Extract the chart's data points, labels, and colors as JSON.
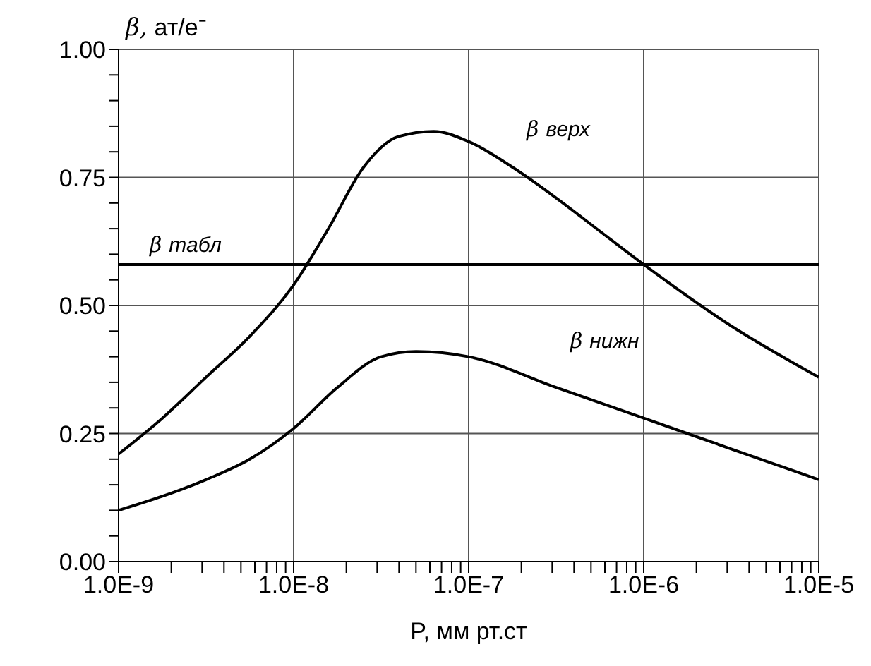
{
  "chart_data": {
    "type": "line",
    "xlabel": "P, мм рт.ст",
    "ylabel": "β, ат/e⁻",
    "log": "x",
    "xlim": [
      1e-09,
      1e-05
    ],
    "xticks": [
      {
        "value": 1e-09,
        "label": "1.0E-9"
      },
      {
        "value": 2e-09,
        "label": null
      },
      {
        "value": 3e-09,
        "label": null
      },
      {
        "value": 4e-09,
        "label": null
      },
      {
        "value": 5e-09,
        "label": null
      },
      {
        "value": 6e-09,
        "label": null
      },
      {
        "value": 7e-09,
        "label": null
      },
      {
        "value": 8e-09,
        "label": null
      },
      {
        "value": 9e-09,
        "label": null
      },
      {
        "value": 1e-08,
        "label": "1.0E-8"
      },
      {
        "value": 2e-08,
        "label": null
      },
      {
        "value": 3e-08,
        "label": null
      },
      {
        "value": 4e-08,
        "label": null
      },
      {
        "value": 5e-08,
        "label": null
      },
      {
        "value": 6e-08,
        "label": null
      },
      {
        "value": 7e-08,
        "label": null
      },
      {
        "value": 8e-08,
        "label": null
      },
      {
        "value": 9e-08,
        "label": null
      },
      {
        "value": 1e-07,
        "label": "1.0E-7"
      },
      {
        "value": 2e-07,
        "label": null
      },
      {
        "value": 3e-07,
        "label": null
      },
      {
        "value": 4e-07,
        "label": null
      },
      {
        "value": 5e-07,
        "label": null
      },
      {
        "value": 6e-07,
        "label": null
      },
      {
        "value": 7e-07,
        "label": null
      },
      {
        "value": 8e-07,
        "label": null
      },
      {
        "value": 9e-07,
        "label": null
      },
      {
        "value": 1e-06,
        "label": "1.0E-6"
      },
      {
        "value": 2e-06,
        "label": null
      },
      {
        "value": 3e-06,
        "label": null
      },
      {
        "value": 4e-06,
        "label": null
      },
      {
        "value": 5e-06,
        "label": null
      },
      {
        "value": 6e-06,
        "label": null
      },
      {
        "value": 7e-06,
        "label": null
      },
      {
        "value": 8e-06,
        "label": null
      },
      {
        "value": 9e-06,
        "label": null
      },
      {
        "value": 1e-05,
        "label": "1.0E-5"
      }
    ],
    "ylim": [
      0,
      1
    ],
    "yticks": [
      {
        "value": 0,
        "label": "0.00"
      },
      {
        "value": 0.05,
        "label": null
      },
      {
        "value": 0.1,
        "label": null
      },
      {
        "value": 0.15,
        "label": null
      },
      {
        "value": 0.2,
        "label": null
      },
      {
        "value": 0.25,
        "label": "0.25"
      },
      {
        "value": 0.3,
        "label": null
      },
      {
        "value": 0.35,
        "label": null
      },
      {
        "value": 0.4,
        "label": null
      },
      {
        "value": 0.45,
        "label": null
      },
      {
        "value": 0.5,
        "label": "0.50"
      },
      {
        "value": 0.55,
        "label": null
      },
      {
        "value": 0.6,
        "label": null
      },
      {
        "value": 0.65,
        "label": null
      },
      {
        "value": 0.7,
        "label": null
      },
      {
        "value": 0.75,
        "label": "0.75"
      },
      {
        "value": 0.8,
        "label": null
      },
      {
        "value": 0.85,
        "label": null
      },
      {
        "value": 0.9,
        "label": null
      },
      {
        "value": 0.95,
        "label": null
      },
      {
        "value": 1,
        "label": "1.00"
      }
    ],
    "grid": true,
    "legend": false,
    "marker": "none",
    "line_style": "solid",
    "series": [
      {
        "name": "β верх",
        "color": "#000000",
        "x": [
          1e-09,
          1.78e-09,
          3.16e-09,
          5.62e-09,
          1e-08,
          1.58e-08,
          2.51e-08,
          3.98e-08,
          6.31e-08,
          1e-07,
          1.78e-07,
          3.16e-07,
          5.62e-07,
          1e-06,
          3.16e-06,
          1e-05
        ],
        "values": [
          0.21,
          0.28,
          0.36,
          0.44,
          0.54,
          0.65,
          0.77,
          0.83,
          0.84,
          0.82,
          0.77,
          0.71,
          0.645,
          0.58,
          0.46,
          0.36
        ]
      },
      {
        "name": "β нижн",
        "color": "#000000",
        "x": [
          1e-09,
          3.16e-09,
          5.62e-09,
          1e-08,
          1.78e-08,
          3.16e-08,
          5.01e-08,
          1e-07,
          3.16e-07,
          1e-06,
          3.16e-06,
          1e-05
        ],
        "values": [
          0.1,
          0.16,
          0.2,
          0.26,
          0.34,
          0.4,
          0.41,
          0.4,
          0.34,
          0.28,
          0.22,
          0.16
        ]
      }
    ],
    "ref_lines": [
      {
        "axis": "y",
        "value": 0.58,
        "label": "β табл",
        "color": "#000000",
        "line_style": "solid"
      }
    ]
  }
}
